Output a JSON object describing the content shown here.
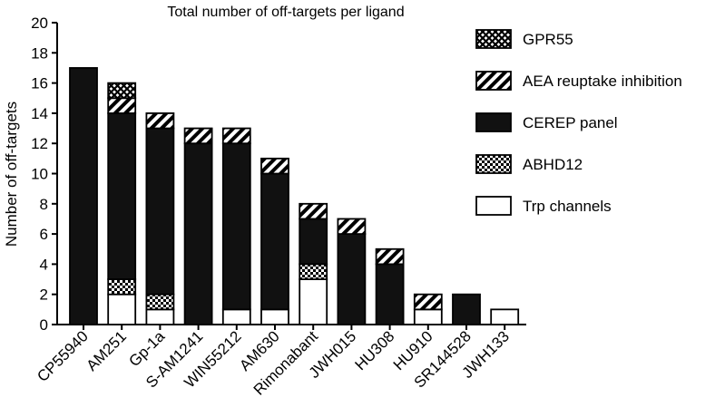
{
  "chart_data": {
    "type": "bar",
    "stacked": true,
    "title": "Total number of off-targets per ligand",
    "ylabel": "Number of off-targets",
    "xlabel": "",
    "ylim": [
      0,
      20
    ],
    "yticks": [
      0,
      2,
      4,
      6,
      8,
      10,
      12,
      14,
      16,
      18,
      20
    ],
    "grid": false,
    "legend_position": "right",
    "categories": [
      "CP55940",
      "AM251",
      "Gp-1a",
      "S-AM1241",
      "WIN55212",
      "AM630",
      "Rimonabant",
      "JWH015",
      "HU308",
      "HU910",
      "SR144528",
      "JWH133"
    ],
    "series": [
      {
        "name": "Trp channels",
        "pattern": "white",
        "values": [
          0,
          2,
          1,
          0,
          1,
          1,
          3,
          0,
          0,
          1,
          0,
          1
        ]
      },
      {
        "name": "ABHD12",
        "pattern": "checker",
        "values": [
          0,
          1,
          1,
          0,
          0,
          0,
          1,
          0,
          0,
          0,
          0,
          0
        ]
      },
      {
        "name": "CEREP panel",
        "pattern": "solid-black",
        "values": [
          17,
          11,
          11,
          12,
          11,
          9,
          3,
          6,
          4,
          0,
          2,
          0
        ]
      },
      {
        "name": "AEA reuptake inhibition",
        "pattern": "diagonal-stripes",
        "values": [
          0,
          1,
          1,
          1,
          1,
          1,
          1,
          1,
          1,
          1,
          0,
          0
        ]
      },
      {
        "name": "GPR55",
        "pattern": "crosshatch",
        "values": [
          0,
          1,
          0,
          0,
          0,
          0,
          0,
          0,
          0,
          0,
          0,
          0
        ]
      }
    ],
    "legend_order": [
      "GPR55",
      "AEA reuptake inhibition",
      "CEREP panel",
      "ABHD12",
      "Trp channels"
    ]
  }
}
